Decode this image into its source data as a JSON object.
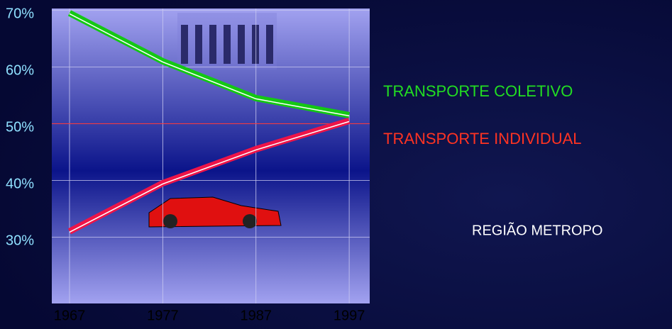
{
  "chart_data": {
    "type": "line",
    "x": [
      1967,
      1977,
      1987,
      1997
    ],
    "series": [
      {
        "name": "TRANSPORTE COLETIVO",
        "color": "#14c814",
        "values": [
          69.5,
          61,
          54.5,
          51.5
        ]
      },
      {
        "name": "TRANSPORTE INDIVIDUAL",
        "color": "#ee1448",
        "values": [
          31,
          39.5,
          45.5,
          50.5
        ]
      }
    ],
    "xlim": [
      1965.1,
      1999.2
    ],
    "xticks": [
      1967,
      1977,
      1987,
      1997
    ],
    "ylim": [
      18.3,
      70.3
    ],
    "yticks": [
      {
        "value": 30,
        "label": "30%"
      },
      {
        "value": 40,
        "label": "40%"
      },
      {
        "value": 50,
        "label": "50%"
      },
      {
        "value": 60,
        "label": "60%"
      },
      {
        "value": 70,
        "label": "70%"
      }
    ],
    "reference_line": 50,
    "reference_color": "#ff3030",
    "grid": true,
    "annotation": "REGIÃO METROPO"
  }
}
